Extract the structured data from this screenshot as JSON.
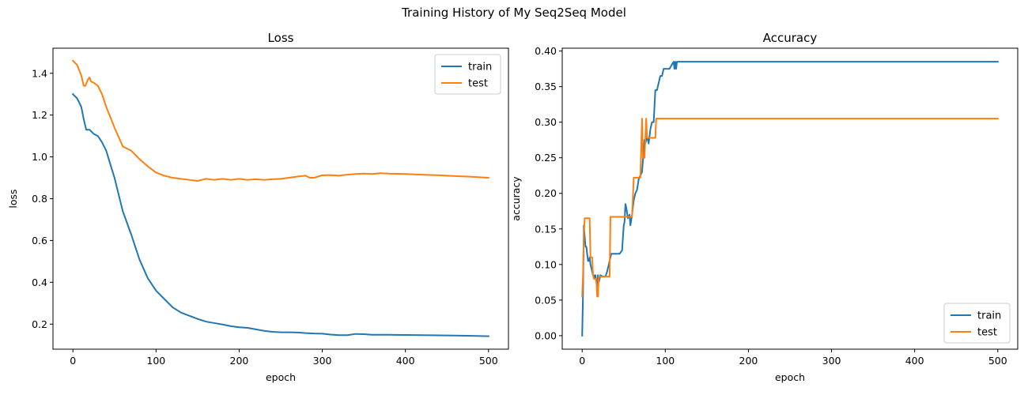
{
  "figure": {
    "title": "Training History of My Seq2Seq Model"
  },
  "colors": {
    "train": "#1f77b4",
    "test": "#ff7f0e"
  },
  "chart_data": [
    {
      "type": "line",
      "title": "Loss",
      "xlabel": "epoch",
      "ylabel": "loss",
      "xlim": [
        -24,
        524
      ],
      "ylim": [
        0.08,
        1.52
      ],
      "xticks": [
        0,
        100,
        200,
        300,
        400,
        500
      ],
      "yticks": [
        0.2,
        0.4,
        0.6,
        0.8,
        1.0,
        1.2,
        1.4
      ],
      "yticklabels": [
        "0.2",
        "0.4",
        "0.6",
        "0.8",
        "1.0",
        "1.2",
        "1.4"
      ],
      "grid": false,
      "legend": "upper-right",
      "series": [
        {
          "name": "train",
          "color": "#1f77b4",
          "x": [
            0,
            5,
            10,
            13,
            16,
            20,
            25,
            30,
            35,
            40,
            50,
            60,
            70,
            80,
            90,
            100,
            110,
            120,
            130,
            140,
            150,
            160,
            170,
            180,
            190,
            200,
            210,
            220,
            230,
            240,
            250,
            260,
            270,
            280,
            290,
            300,
            310,
            320,
            330,
            340,
            350,
            360,
            380,
            400,
            420,
            440,
            460,
            480,
            500
          ],
          "y": [
            1.3,
            1.28,
            1.24,
            1.18,
            1.13,
            1.13,
            1.11,
            1.1,
            1.07,
            1.03,
            0.9,
            0.74,
            0.63,
            0.51,
            0.42,
            0.36,
            0.32,
            0.28,
            0.255,
            0.24,
            0.225,
            0.212,
            0.205,
            0.198,
            0.19,
            0.185,
            0.182,
            0.175,
            0.168,
            0.163,
            0.161,
            0.161,
            0.16,
            0.157,
            0.155,
            0.154,
            0.15,
            0.147,
            0.147,
            0.153,
            0.152,
            0.149,
            0.149,
            0.148,
            0.147,
            0.146,
            0.145,
            0.144,
            0.142
          ]
        },
        {
          "name": "test",
          "color": "#ff7f0e",
          "x": [
            0,
            5,
            10,
            13,
            15,
            18,
            20,
            22,
            25,
            30,
            35,
            40,
            50,
            60,
            65,
            70,
            80,
            90,
            100,
            110,
            120,
            130,
            140,
            150,
            160,
            170,
            180,
            190,
            200,
            210,
            220,
            230,
            240,
            250,
            260,
            270,
            280,
            285,
            290,
            300,
            310,
            320,
            330,
            340,
            350,
            360,
            370,
            380,
            400,
            420,
            440,
            460,
            480,
            500
          ],
          "y": [
            1.46,
            1.44,
            1.39,
            1.34,
            1.34,
            1.37,
            1.38,
            1.36,
            1.355,
            1.34,
            1.3,
            1.24,
            1.14,
            1.05,
            1.04,
            1.03,
            0.99,
            0.955,
            0.925,
            0.91,
            0.9,
            0.895,
            0.89,
            0.885,
            0.895,
            0.89,
            0.895,
            0.89,
            0.895,
            0.89,
            0.893,
            0.89,
            0.893,
            0.895,
            0.9,
            0.906,
            0.91,
            0.9,
            0.9,
            0.912,
            0.913,
            0.91,
            0.915,
            0.918,
            0.92,
            0.918,
            0.922,
            0.92,
            0.918,
            0.915,
            0.912,
            0.908,
            0.905,
            0.9
          ]
        }
      ]
    },
    {
      "type": "line",
      "title": "Accuracy",
      "xlabel": "epoch",
      "ylabel": "accuracy",
      "xlim": [
        -24,
        524
      ],
      "ylim": [
        -0.019,
        0.404
      ],
      "xticks": [
        0,
        100,
        200,
        300,
        400,
        500
      ],
      "yticks": [
        0.0,
        0.05,
        0.1,
        0.15,
        0.2,
        0.25,
        0.3,
        0.35,
        0.4
      ],
      "yticklabels": [
        "0.00",
        "0.05",
        "0.10",
        "0.15",
        "0.20",
        "0.25",
        "0.30",
        "0.35",
        "0.40"
      ],
      "grid": false,
      "legend": "lower-right",
      "series": [
        {
          "name": "train",
          "color": "#1f77b4",
          "x": [
            0,
            1,
            2,
            3,
            4,
            5,
            6,
            7,
            8,
            9,
            10,
            11,
            12,
            13,
            14,
            15,
            16,
            17,
            18,
            19,
            20,
            22,
            25,
            28,
            30,
            32,
            35,
            38,
            40,
            45,
            48,
            50,
            51,
            52,
            53,
            55,
            57,
            58,
            60,
            62,
            64,
            66,
            68,
            70,
            72,
            74,
            75,
            76,
            78,
            79,
            80,
            82,
            84,
            86,
            88,
            90,
            92,
            94,
            96,
            98,
            100,
            105,
            110,
            111,
            112,
            113,
            114,
            115,
            116,
            120,
            200,
            300,
            400,
            500
          ],
          "y": [
            0.0,
            0.06,
            0.155,
            0.14,
            0.125,
            0.125,
            0.115,
            0.105,
            0.105,
            0.11,
            0.1,
            0.095,
            0.09,
            0.085,
            0.085,
            0.08,
            0.085,
            0.075,
            0.07,
            0.085,
            0.075,
            0.085,
            0.083,
            0.083,
            0.09,
            0.1,
            0.115,
            0.115,
            0.115,
            0.115,
            0.12,
            0.155,
            0.16,
            0.185,
            0.18,
            0.165,
            0.17,
            0.155,
            0.17,
            0.19,
            0.2,
            0.205,
            0.22,
            0.225,
            0.23,
            0.26,
            0.275,
            0.27,
            0.28,
            0.275,
            0.27,
            0.29,
            0.3,
            0.3,
            0.345,
            0.345,
            0.355,
            0.365,
            0.365,
            0.375,
            0.375,
            0.375,
            0.385,
            0.375,
            0.385,
            0.375,
            0.385,
            0.385,
            0.385,
            0.385,
            0.385,
            0.385,
            0.385,
            0.385
          ]
        },
        {
          "name": "test",
          "color": "#ff7f0e",
          "x": [
            0,
            1,
            2,
            3,
            4,
            5,
            6,
            7,
            8,
            9,
            10,
            11,
            12,
            13,
            14,
            15,
            16,
            17,
            18,
            19,
            20,
            22,
            25,
            30,
            33,
            34,
            35,
            36,
            40,
            50,
            55,
            58,
            60,
            62,
            64,
            66,
            68,
            70,
            72,
            73,
            74,
            75,
            76,
            77,
            78,
            80,
            81,
            82,
            84,
            86,
            88,
            89,
            90,
            92,
            95,
            100,
            200,
            300,
            400,
            500
          ],
          "y": [
            0.055,
            0.085,
            0.14,
            0.165,
            0.165,
            0.165,
            0.165,
            0.165,
            0.165,
            0.165,
            0.11,
            0.11,
            0.11,
            0.085,
            0.08,
            0.08,
            0.08,
            0.08,
            0.055,
            0.055,
            0.083,
            0.083,
            0.083,
            0.083,
            0.083,
            0.167,
            0.167,
            0.167,
            0.167,
            0.167,
            0.167,
            0.167,
            0.167,
            0.222,
            0.222,
            0.222,
            0.222,
            0.222,
            0.305,
            0.25,
            0.25,
            0.25,
            0.278,
            0.305,
            0.278,
            0.278,
            0.278,
            0.278,
            0.278,
            0.278,
            0.278,
            0.305,
            0.305,
            0.305,
            0.305,
            0.305,
            0.305,
            0.305,
            0.305,
            0.305
          ]
        }
      ]
    }
  ]
}
